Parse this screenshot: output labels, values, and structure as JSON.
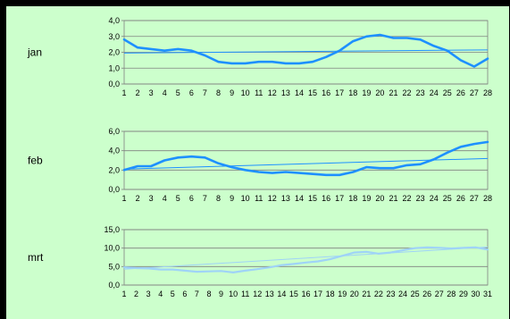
{
  "colors": {
    "outer_border": "#000000",
    "background": "#ccffcc",
    "grid": "#808080",
    "axis": "#808080",
    "series_jan_feb": "#1e90ff",
    "trend_jan_feb": "#1e90ff",
    "series_mrt": "#9fd3f7",
    "trend_mrt": "#9fd3f7"
  },
  "chart_data": [
    {
      "type": "line",
      "label": "jan",
      "ylim": [
        0,
        4
      ],
      "yticks": [
        "0,0",
        "1,0",
        "2,0",
        "3,0",
        "4,0"
      ],
      "x": [
        1,
        2,
        3,
        4,
        5,
        6,
        7,
        8,
        9,
        10,
        11,
        12,
        13,
        14,
        15,
        16,
        17,
        18,
        19,
        20,
        21,
        22,
        23,
        24,
        25,
        26,
        27,
        28
      ],
      "values": [
        2.8,
        2.3,
        2.2,
        2.1,
        2.2,
        2.1,
        1.8,
        1.4,
        1.3,
        1.3,
        1.4,
        1.4,
        1.3,
        1.3,
        1.4,
        1.7,
        2.1,
        2.7,
        3.0,
        3.1,
        2.9,
        2.9,
        2.8,
        2.4,
        2.1,
        1.5,
        1.1,
        1.6
      ],
      "trend": [
        1.95,
        2.15
      ],
      "grid": true,
      "legend": false
    },
    {
      "type": "line",
      "label": "feb",
      "ylim": [
        0,
        6
      ],
      "yticks": [
        "0,0",
        "2,0",
        "4,0",
        "6,0"
      ],
      "x": [
        1,
        2,
        3,
        4,
        5,
        6,
        7,
        8,
        9,
        10,
        11,
        12,
        13,
        14,
        15,
        16,
        17,
        18,
        19,
        20,
        21,
        22,
        23,
        24,
        25,
        26,
        27,
        28
      ],
      "values": [
        2.0,
        2.4,
        2.4,
        3.0,
        3.3,
        3.4,
        3.3,
        2.7,
        2.3,
        2.0,
        1.8,
        1.7,
        1.8,
        1.7,
        1.6,
        1.5,
        1.5,
        1.8,
        2.3,
        2.2,
        2.2,
        2.5,
        2.6,
        3.1,
        3.8,
        4.4,
        4.7,
        4.9
      ],
      "trend": [
        2.1,
        3.2
      ],
      "grid": true,
      "legend": false
    },
    {
      "type": "line",
      "label": "mrt",
      "ylim": [
        0,
        15
      ],
      "yticks": [
        "0,0",
        "5,0",
        "10,0",
        "15,0"
      ],
      "x": [
        1,
        2,
        3,
        4,
        5,
        6,
        7,
        8,
        9,
        10,
        11,
        12,
        13,
        14,
        15,
        16,
        17,
        18,
        19,
        20,
        21,
        22,
        23,
        24,
        25,
        26,
        27,
        28,
        29,
        30,
        31
      ],
      "values": [
        4.8,
        4.6,
        4.5,
        4.2,
        4.2,
        3.9,
        3.6,
        3.7,
        3.8,
        3.4,
        3.9,
        4.3,
        4.8,
        5.4,
        5.7,
        6.1,
        6.4,
        7.0,
        7.9,
        8.8,
        9.0,
        8.5,
        8.8,
        9.4,
        10.0,
        10.2,
        10.1,
        9.9,
        10.1,
        10.2,
        9.6
      ],
      "trend": [
        4.3,
        10.3
      ],
      "grid": true,
      "legend": false
    }
  ]
}
